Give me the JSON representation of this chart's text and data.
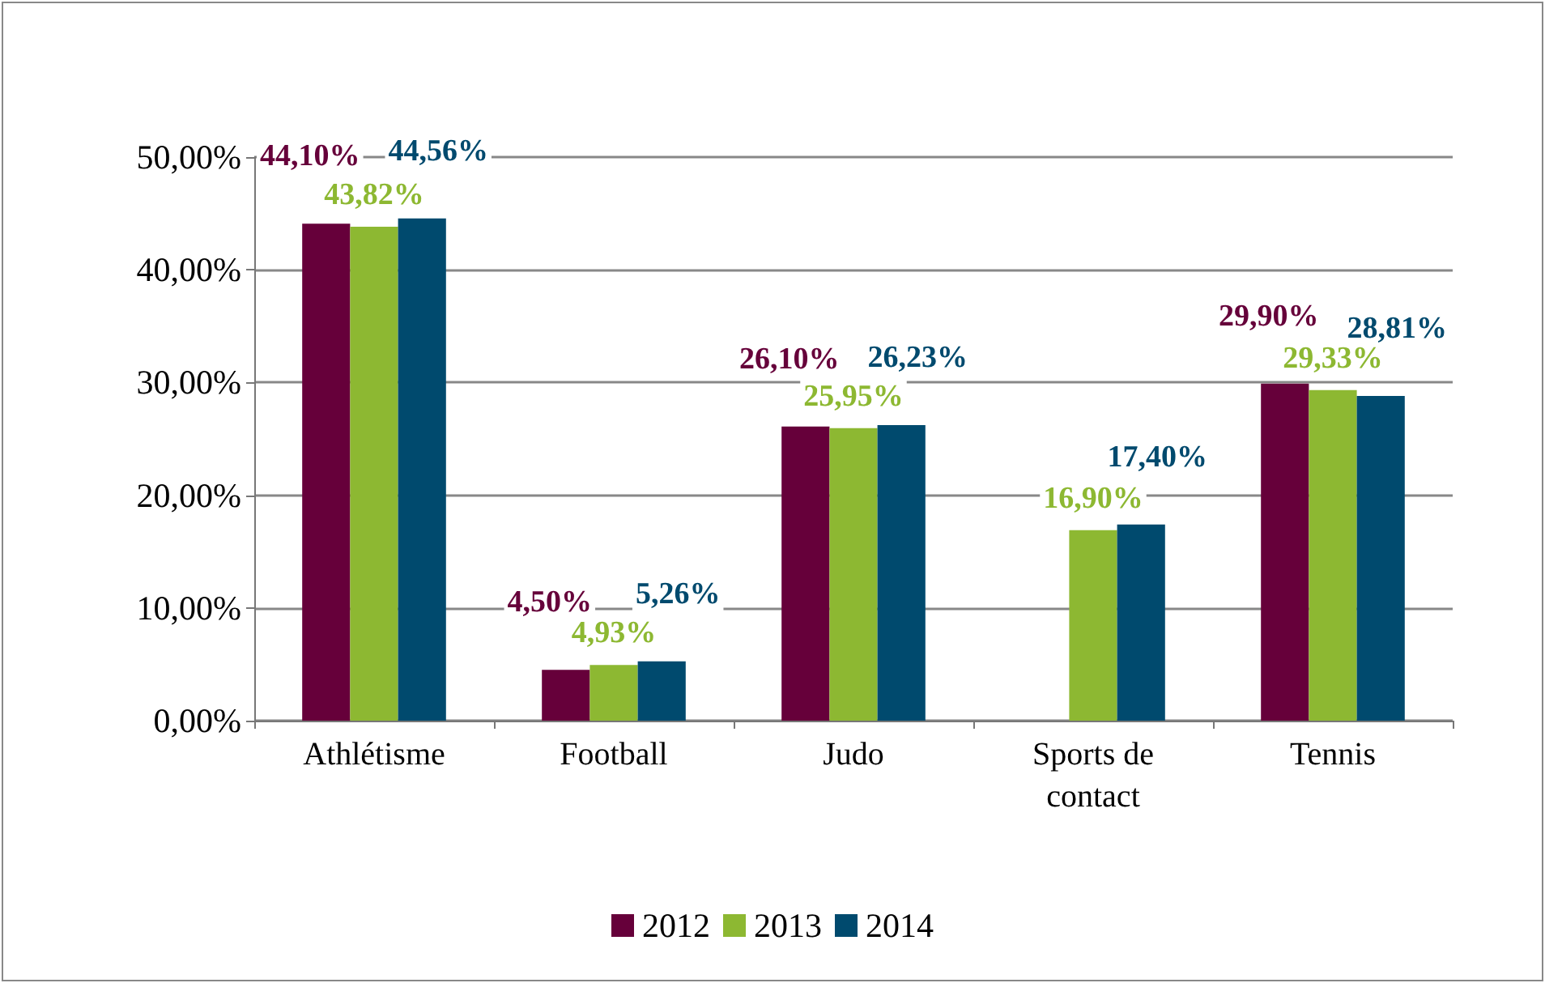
{
  "chart_data": {
    "type": "bar",
    "categories": [
      "Athlétisme",
      "Football",
      "Judo",
      "Sports de contact",
      "Tennis"
    ],
    "series": [
      {
        "name": "2012",
        "color": "#66003a",
        "values": [
          44.1,
          4.5,
          26.1,
          null,
          29.9
        ],
        "value_labels": [
          "44,10%",
          "4,50%",
          "26,10%",
          null,
          "29,90%"
        ]
      },
      {
        "name": "2013",
        "color": "#8db832",
        "values": [
          43.82,
          4.93,
          25.95,
          16.9,
          29.33
        ],
        "value_labels": [
          "43,82%",
          "4,93%",
          "25,95%",
          "16,90%",
          "29,33%"
        ]
      },
      {
        "name": "2014",
        "color": "#004a6e",
        "values": [
          44.56,
          5.26,
          26.23,
          17.4,
          28.81
        ],
        "value_labels": [
          "44,56%",
          "5,26%",
          "26,23%",
          "17,40%",
          "28,81%"
        ]
      }
    ],
    "ylim": [
      0,
      50
    ],
    "yticks": [
      {
        "value": 0,
        "label": "0,00%"
      },
      {
        "value": 10,
        "label": "10,00%"
      },
      {
        "value": 20,
        "label": "20,00%"
      },
      {
        "value": 30,
        "label": "30,00%"
      },
      {
        "value": 40,
        "label": "40,00%"
      },
      {
        "value": 50,
        "label": "50,00%"
      }
    ],
    "grid": "y",
    "legend": "bottom"
  }
}
